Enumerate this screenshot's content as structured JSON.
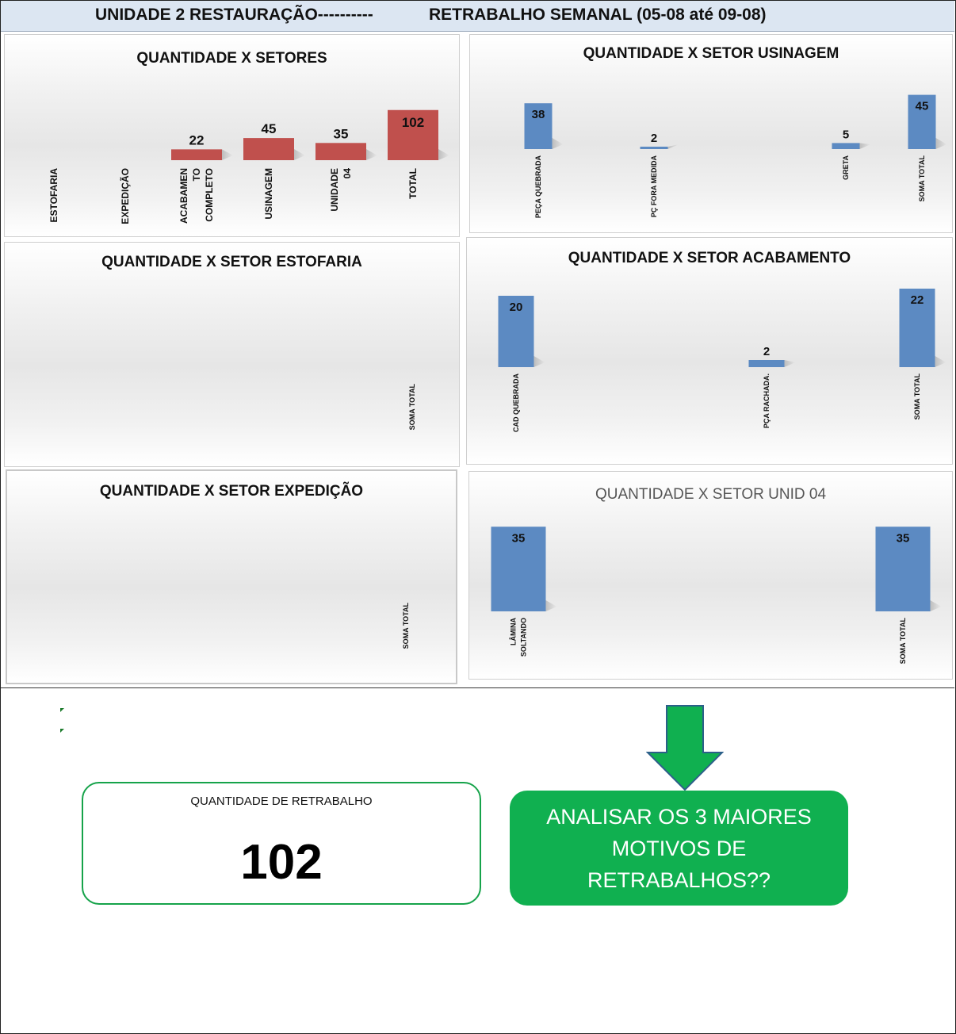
{
  "header": {
    "left": "UNIDADE 2 RESTAURAÇÃO----------",
    "right": "RETRABALHO SEMANAL (05-08 até 09-08)"
  },
  "colors": {
    "red": "#c0504d",
    "blue": "#4f81bd",
    "green": "#10b050",
    "header_bg": "#dce6f2"
  },
  "chart_data": [
    {
      "id": "setores",
      "type": "bar",
      "title": "QUANTIDADE X SETORES",
      "categories": [
        "ESTOFARIA",
        "EXPEDIÇÃO",
        "ACABAMEN TO COMPLETO",
        "USINAGEM",
        "UNIDADE 04",
        "TOTAL"
      ],
      "values": [
        0,
        0,
        22,
        45,
        35,
        102
      ],
      "data_labels": [
        "",
        "",
        "22",
        "45",
        "35",
        "102"
      ],
      "color": "#c0504d"
    },
    {
      "id": "usinagem",
      "type": "bar",
      "title": "QUANTIDADE X SETOR USINAGEM",
      "categories": [
        "PEÇA QUEBRADA",
        "PÇ FORA MEDIDA",
        "",
        "GRETA",
        "SOMA TOTAL"
      ],
      "values": [
        38,
        2,
        0,
        5,
        45
      ],
      "data_labels": [
        "38",
        "2",
        "",
        "5",
        "45"
      ],
      "color": "#4f81bd"
    },
    {
      "id": "estofaria",
      "type": "bar",
      "title": "QUANTIDADE X SETOR ESTOFARIA",
      "categories": [
        "SOMA TOTAL"
      ],
      "values": [
        0
      ],
      "data_labels": [
        ""
      ],
      "color": "#4f81bd"
    },
    {
      "id": "acabamento",
      "type": "bar",
      "title": "QUANTIDADE X SETOR ACABAMENTO",
      "categories": [
        "CAD QUEBRADA",
        "PÇA RACHADA.",
        "SOMA TOTAL"
      ],
      "values": [
        20,
        2,
        22
      ],
      "data_labels": [
        "20",
        "2",
        "22"
      ],
      "color": "#4f81bd"
    },
    {
      "id": "expedicao",
      "type": "bar",
      "title": "QUANTIDADE X SETOR EXPEDIÇÃO",
      "categories": [
        "SOMA TOTAL"
      ],
      "values": [
        0
      ],
      "data_labels": [
        ""
      ],
      "color": "#4f81bd"
    },
    {
      "id": "unid04",
      "type": "bar",
      "title": "QUANTIDADE X SETOR UNID 04",
      "categories": [
        "LÂMINA SOLTANDO",
        "SOMA TOTAL"
      ],
      "values": [
        35,
        35
      ],
      "data_labels": [
        "35",
        "35"
      ],
      "color": "#4f81bd"
    }
  ],
  "summary": {
    "label": "QUANTIDADE DE RETRABALHO",
    "value": "102"
  },
  "callout": {
    "text": "ANALISAR OS 3 MAIORES MOTIVOS DE RETRABALHOS??"
  }
}
